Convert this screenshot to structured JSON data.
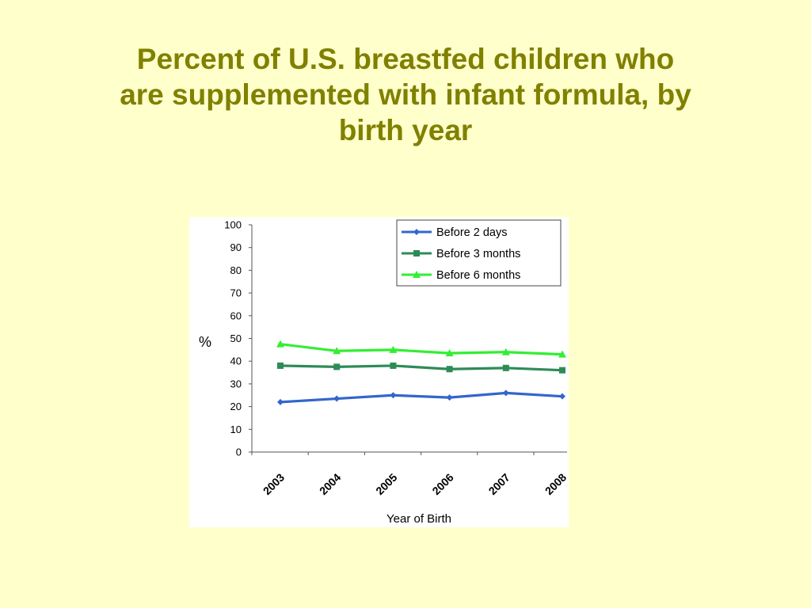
{
  "slide": {
    "title_lines": [
      "Percent of U.S. breastfed children who",
      "are supplemented with infant formula, by",
      "birth year"
    ]
  },
  "colors": {
    "background": "#FFFFCC",
    "title": "#808000",
    "series_before_2_days": "#3366CC",
    "series_before_3_months": "#2E8B57",
    "series_before_6_months": "#33EE33"
  },
  "chart_data": {
    "type": "line",
    "title": "",
    "xlabel": "Year of Birth",
    "ylabel": "%",
    "categories": [
      "2003",
      "2004",
      "2005",
      "2006",
      "2007",
      "2008"
    ],
    "ylim": [
      0,
      100
    ],
    "yticks": [
      0,
      10,
      20,
      30,
      40,
      50,
      60,
      70,
      80,
      90,
      100
    ],
    "grid": false,
    "legend_position": "top-right",
    "series": [
      {
        "name": "Before 2 days",
        "marker": "diamond",
        "color": "#3366CC",
        "values": [
          22,
          23.5,
          25,
          24,
          26,
          24.5
        ]
      },
      {
        "name": "Before 3 months",
        "marker": "square",
        "color": "#2E8B57",
        "values": [
          38,
          37.5,
          38,
          36.5,
          37,
          36
        ]
      },
      {
        "name": "Before 6 months",
        "marker": "triangle",
        "color": "#33EE33",
        "values": [
          47.5,
          44.5,
          45,
          43.5,
          44,
          43
        ]
      }
    ]
  }
}
